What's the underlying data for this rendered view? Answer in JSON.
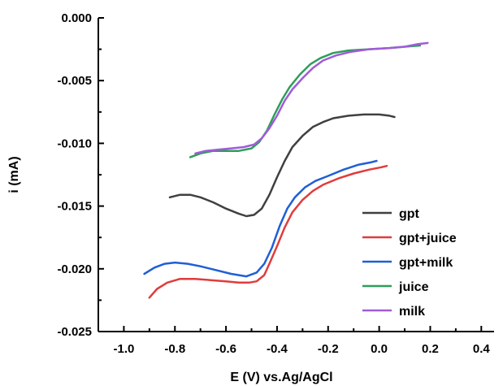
{
  "chart_data": {
    "type": "line",
    "title": "",
    "xlabel": "E (V) vs.Ag/AgCl",
    "ylabel": "i (mA)",
    "xlim": [
      -1.1,
      0.45
    ],
    "ylim": [
      -0.025,
      0.0
    ],
    "x_ticks": [
      -1.0,
      -0.8,
      -0.6,
      -0.4,
      -0.2,
      0.0,
      0.2,
      0.4
    ],
    "x_tick_labels": [
      "-1.0",
      "-0.8",
      "-0.6",
      "-0.4",
      "-0.2",
      "0.0",
      "0.2",
      "0.4"
    ],
    "y_ticks": [
      0.0,
      -0.005,
      -0.01,
      -0.015,
      -0.02,
      -0.025
    ],
    "y_tick_labels": [
      "0.000",
      "-0.005",
      "-0.010",
      "-0.015",
      "-0.020",
      "-0.025"
    ],
    "grid": false,
    "legend_position": "bottom-right",
    "series": [
      {
        "name": "gpt",
        "color": "#404040",
        "points": [
          [
            -0.82,
            -0.0143
          ],
          [
            -0.78,
            -0.0141
          ],
          [
            -0.74,
            -0.0141
          ],
          [
            -0.7,
            -0.0143
          ],
          [
            -0.65,
            -0.0147
          ],
          [
            -0.6,
            -0.0152
          ],
          [
            -0.55,
            -0.0156
          ],
          [
            -0.52,
            -0.0158
          ],
          [
            -0.49,
            -0.0157
          ],
          [
            -0.46,
            -0.0152
          ],
          [
            -0.43,
            -0.0141
          ],
          [
            -0.4,
            -0.0127
          ],
          [
            -0.37,
            -0.0114
          ],
          [
            -0.34,
            -0.0103
          ],
          [
            -0.3,
            -0.0094
          ],
          [
            -0.26,
            -0.0087
          ],
          [
            -0.22,
            -0.0083
          ],
          [
            -0.18,
            -0.008
          ],
          [
            -0.12,
            -0.0078
          ],
          [
            -0.06,
            -0.0077
          ],
          [
            0.0,
            -0.0077
          ],
          [
            0.04,
            -0.0078
          ],
          [
            0.06,
            -0.0079
          ]
        ]
      },
      {
        "name": "gpt+juice",
        "color": "#e03c3c",
        "points": [
          [
            -0.9,
            -0.0223
          ],
          [
            -0.87,
            -0.0216
          ],
          [
            -0.83,
            -0.0211
          ],
          [
            -0.78,
            -0.0208
          ],
          [
            -0.72,
            -0.0208
          ],
          [
            -0.66,
            -0.0209
          ],
          [
            -0.6,
            -0.021
          ],
          [
            -0.55,
            -0.0211
          ],
          [
            -0.51,
            -0.0211
          ],
          [
            -0.48,
            -0.021
          ],
          [
            -0.45,
            -0.0205
          ],
          [
            -0.43,
            -0.0196
          ],
          [
            -0.4,
            -0.0182
          ],
          [
            -0.37,
            -0.0167
          ],
          [
            -0.34,
            -0.0155
          ],
          [
            -0.3,
            -0.0145
          ],
          [
            -0.26,
            -0.0138
          ],
          [
            -0.22,
            -0.0133
          ],
          [
            -0.16,
            -0.0128
          ],
          [
            -0.1,
            -0.0124
          ],
          [
            -0.04,
            -0.0121
          ],
          [
            0.01,
            -0.0119
          ],
          [
            0.03,
            -0.0118
          ]
        ]
      },
      {
        "name": "gpt+milk",
        "color": "#1f5fd6",
        "points": [
          [
            -0.92,
            -0.0204
          ],
          [
            -0.88,
            -0.0199
          ],
          [
            -0.84,
            -0.0196
          ],
          [
            -0.8,
            -0.0195
          ],
          [
            -0.75,
            -0.0196
          ],
          [
            -0.7,
            -0.0198
          ],
          [
            -0.64,
            -0.0201
          ],
          [
            -0.58,
            -0.0204
          ],
          [
            -0.52,
            -0.0206
          ],
          [
            -0.48,
            -0.0203
          ],
          [
            -0.45,
            -0.0196
          ],
          [
            -0.42,
            -0.0183
          ],
          [
            -0.39,
            -0.0166
          ],
          [
            -0.36,
            -0.0152
          ],
          [
            -0.33,
            -0.0143
          ],
          [
            -0.29,
            -0.0135
          ],
          [
            -0.25,
            -0.013
          ],
          [
            -0.2,
            -0.0126
          ],
          [
            -0.14,
            -0.0121
          ],
          [
            -0.08,
            -0.0117
          ],
          [
            -0.03,
            -0.0115
          ],
          [
            -0.01,
            -0.0114
          ]
        ]
      },
      {
        "name": "juice",
        "color": "#2e9e5a",
        "points": [
          [
            -0.74,
            -0.0111
          ],
          [
            -0.7,
            -0.0108
          ],
          [
            -0.65,
            -0.0106
          ],
          [
            -0.6,
            -0.0106
          ],
          [
            -0.55,
            -0.0106
          ],
          [
            -0.5,
            -0.0104
          ],
          [
            -0.47,
            -0.0099
          ],
          [
            -0.44,
            -0.009
          ],
          [
            -0.41,
            -0.0077
          ],
          [
            -0.38,
            -0.0065
          ],
          [
            -0.35,
            -0.0055
          ],
          [
            -0.31,
            -0.0045
          ],
          [
            -0.27,
            -0.0037
          ],
          [
            -0.23,
            -0.0032
          ],
          [
            -0.18,
            -0.0028
          ],
          [
            -0.12,
            -0.0026
          ],
          [
            -0.04,
            -0.0025
          ],
          [
            0.04,
            -0.0024
          ],
          [
            0.1,
            -0.0023
          ],
          [
            0.16,
            -0.0022
          ]
        ]
      },
      {
        "name": "milk",
        "color": "#a05cd8",
        "points": [
          [
            -0.72,
            -0.0108
          ],
          [
            -0.68,
            -0.0106
          ],
          [
            -0.63,
            -0.0105
          ],
          [
            -0.58,
            -0.0104
          ],
          [
            -0.53,
            -0.0103
          ],
          [
            -0.49,
            -0.0101
          ],
          [
            -0.46,
            -0.0096
          ],
          [
            -0.43,
            -0.0088
          ],
          [
            -0.4,
            -0.0078
          ],
          [
            -0.37,
            -0.0066
          ],
          [
            -0.34,
            -0.0057
          ],
          [
            -0.3,
            -0.0048
          ],
          [
            -0.26,
            -0.004
          ],
          [
            -0.22,
            -0.0034
          ],
          [
            -0.17,
            -0.003
          ],
          [
            -0.11,
            -0.0027
          ],
          [
            -0.04,
            -0.0025
          ],
          [
            0.04,
            -0.0024
          ],
          [
            0.1,
            -0.0023
          ],
          [
            0.15,
            -0.0021
          ],
          [
            0.19,
            -0.002
          ]
        ]
      }
    ]
  }
}
